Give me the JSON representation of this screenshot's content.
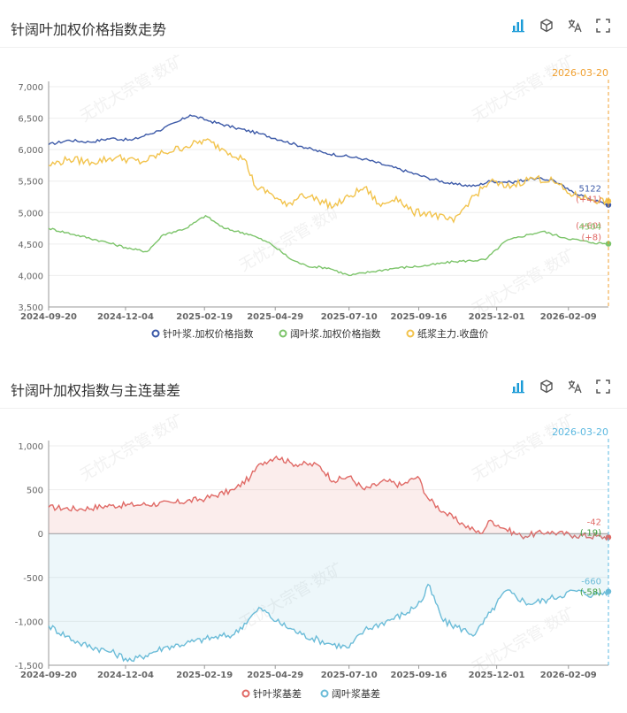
{
  "panel1": {
    "title": "针阔叶加权价格指数走势",
    "date_marker": "2026-03-20",
    "end_labels": {
      "nbsk": "5122",
      "nbsk_delta": "(+41)",
      "pulp_delta": "(+60)",
      "bhkp": "4504",
      "bhkp_delta": "(+8)"
    }
  },
  "panel2": {
    "title": "针阔叶加权指数与主连基差",
    "date_marker": "2026-03-20",
    "end_labels": {
      "nb": "-42",
      "nb_delta": "(-19)",
      "bh": "-660",
      "bh_delta": "(-58)"
    }
  },
  "watermark": "无忧大宗管·数矿",
  "colors": {
    "nbsk": "#3d5aa8",
    "bhkp": "#7cc46a",
    "pulp": "#f2c34c",
    "nb_basis": "#e06a66",
    "bh_basis": "#6bbcd8",
    "marker": "#f0a030",
    "marker2": "#5bb8e0"
  },
  "icons": [
    "bar-chart-icon",
    "cube-icon",
    "translate-icon",
    "fullscreen-icon"
  ],
  "chart_data": [
    {
      "type": "line",
      "title": "针阔叶加权价格指数走势",
      "x_ticks": [
        "2024-09-20",
        "2024-12-04",
        "2025-02-19",
        "2025-04-29",
        "2025-07-10",
        "2025-09-16",
        "2025-12-01",
        "2026-02-09"
      ],
      "x_range": [
        "2024-09-20",
        "2026-03-20"
      ],
      "ylim": [
        3500,
        7000
      ],
      "y_ticks": [
        "3,500",
        "4,000",
        "4,500",
        "5,000",
        "5,500",
        "6,000",
        "6,500",
        "7,000"
      ],
      "legend_position": "bottom",
      "series": [
        {
          "name": "针叶浆.加权价格指数",
          "color": "#3d5aa8",
          "points": [
            [
              "2024-09-20",
              6080
            ],
            [
              "2024-10-10",
              6150
            ],
            [
              "2024-10-30",
              6120
            ],
            [
              "2024-11-20",
              6180
            ],
            [
              "2024-12-10",
              6150
            ],
            [
              "2025-01-05",
              6300
            ],
            [
              "2025-01-25",
              6450
            ],
            [
              "2025-02-05",
              6550
            ],
            [
              "2025-02-25",
              6450
            ],
            [
              "2025-03-20",
              6350
            ],
            [
              "2025-04-15",
              6250
            ],
            [
              "2025-05-05",
              6150
            ],
            [
              "2025-05-25",
              6050
            ],
            [
              "2025-06-15",
              5950
            ],
            [
              "2025-07-05",
              5900
            ],
            [
              "2025-07-25",
              5850
            ],
            [
              "2025-08-15",
              5750
            ],
            [
              "2025-09-05",
              5650
            ],
            [
              "2025-09-25",
              5550
            ],
            [
              "2025-10-20",
              5450
            ],
            [
              "2025-11-10",
              5420
            ],
            [
              "2025-11-25",
              5500
            ],
            [
              "2025-12-15",
              5480
            ],
            [
              "2026-01-05",
              5540
            ],
            [
              "2026-01-25",
              5520
            ],
            [
              "2026-02-10",
              5350
            ],
            [
              "2026-03-05",
              5200
            ],
            [
              "2026-03-20",
              5122
            ]
          ]
        },
        {
          "name": "阔叶浆.加权价格指数",
          "color": "#7cc46a",
          "points": [
            [
              "2024-09-20",
              4750
            ],
            [
              "2024-10-15",
              4650
            ],
            [
              "2024-11-10",
              4550
            ],
            [
              "2024-12-10",
              4420
            ],
            [
              "2024-12-25",
              4380
            ],
            [
              "2025-01-10",
              4650
            ],
            [
              "2025-02-01",
              4750
            ],
            [
              "2025-02-20",
              4950
            ],
            [
              "2025-03-10",
              4750
            ],
            [
              "2025-04-05",
              4650
            ],
            [
              "2025-04-25",
              4500
            ],
            [
              "2025-05-15",
              4250
            ],
            [
              "2025-05-30",
              4150
            ],
            [
              "2025-06-20",
              4120
            ],
            [
              "2025-07-10",
              4000
            ],
            [
              "2025-08-01",
              4060
            ],
            [
              "2025-08-25",
              4120
            ],
            [
              "2025-09-20",
              4150
            ],
            [
              "2025-10-20",
              4220
            ],
            [
              "2025-11-20",
              4250
            ],
            [
              "2025-12-10",
              4550
            ],
            [
              "2026-01-01",
              4650
            ],
            [
              "2026-01-15",
              4700
            ],
            [
              "2026-02-05",
              4600
            ],
            [
              "2026-03-05",
              4520
            ],
            [
              "2026-03-20",
              4504
            ]
          ]
        },
        {
          "name": "纸浆主力.收盘价",
          "color": "#f2c34c",
          "points": [
            [
              "2024-09-20",
              5750
            ],
            [
              "2024-10-10",
              5850
            ],
            [
              "2024-11-01",
              5800
            ],
            [
              "2024-11-25",
              5880
            ],
            [
              "2024-12-20",
              5800
            ],
            [
              "2025-01-10",
              5950
            ],
            [
              "2025-02-01",
              6050
            ],
            [
              "2025-02-20",
              6150
            ],
            [
              "2025-03-10",
              6000
            ],
            [
              "2025-03-30",
              5850
            ],
            [
              "2025-04-10",
              5400
            ],
            [
              "2025-04-25",
              5300
            ],
            [
              "2025-05-10",
              5100
            ],
            [
              "2025-05-25",
              5300
            ],
            [
              "2025-06-10",
              5200
            ],
            [
              "2025-06-25",
              5100
            ],
            [
              "2025-07-10",
              5250
            ],
            [
              "2025-07-25",
              5400
            ],
            [
              "2025-08-10",
              5100
            ],
            [
              "2025-08-25",
              5250
            ],
            [
              "2025-09-10",
              5000
            ],
            [
              "2025-09-25",
              5000
            ],
            [
              "2025-10-20",
              4850
            ],
            [
              "2025-11-05",
              5200
            ],
            [
              "2025-11-25",
              5500
            ],
            [
              "2025-12-10",
              5400
            ],
            [
              "2026-01-05",
              5550
            ],
            [
              "2026-01-25",
              5500
            ],
            [
              "2026-02-10",
              5300
            ],
            [
              "2026-03-05",
              5200
            ],
            [
              "2026-03-20",
              5182
            ]
          ]
        }
      ]
    },
    {
      "type": "area",
      "title": "针阔叶加权指数与主连基差",
      "x_ticks": [
        "2024-09-20",
        "2024-12-04",
        "2025-02-19",
        "2025-04-29",
        "2025-07-10",
        "2025-09-16",
        "2025-12-01",
        "2026-02-09"
      ],
      "x_range": [
        "2024-09-20",
        "2026-03-20"
      ],
      "ylim": [
        -1500,
        1000
      ],
      "y_ticks": [
        "-1,500",
        "-1,000",
        "-500",
        "0",
        "500",
        "1,000"
      ],
      "legend_position": "bottom",
      "series": [
        {
          "name": "针叶浆基差",
          "color": "#e06a66",
          "points": [
            [
              "2024-09-20",
              300
            ],
            [
              "2024-10-20",
              280
            ],
            [
              "2024-11-20",
              320
            ],
            [
              "2024-12-20",
              330
            ],
            [
              "2025-01-20",
              350
            ],
            [
              "2025-02-20",
              400
            ],
            [
              "2025-03-20",
              500
            ],
            [
              "2025-04-05",
              650
            ],
            [
              "2025-04-15",
              800
            ],
            [
              "2025-04-30",
              880
            ],
            [
              "2025-05-15",
              800
            ],
            [
              "2025-06-10",
              780
            ],
            [
              "2025-06-25",
              600
            ],
            [
              "2025-07-10",
              650
            ],
            [
              "2025-07-25",
              500
            ],
            [
              "2025-08-15",
              600
            ],
            [
              "2025-08-30",
              550
            ],
            [
              "2025-09-15",
              650
            ],
            [
              "2025-09-25",
              400
            ],
            [
              "2025-10-10",
              250
            ],
            [
              "2025-10-30",
              100
            ],
            [
              "2025-11-15",
              0
            ],
            [
              "2025-11-25",
              150
            ],
            [
              "2025-12-10",
              50
            ],
            [
              "2025-12-25",
              -30
            ],
            [
              "2026-01-20",
              20
            ],
            [
              "2026-02-15",
              -20
            ],
            [
              "2026-03-20",
              -42
            ]
          ]
        },
        {
          "name": "阔叶浆基差",
          "color": "#6bbcd8",
          "points": [
            [
              "2024-09-20",
              -1050
            ],
            [
              "2024-10-20",
              -1250
            ],
            [
              "2024-11-20",
              -1350
            ],
            [
              "2024-12-10",
              -1450
            ],
            [
              "2025-01-10",
              -1300
            ],
            [
              "2025-02-01",
              -1250
            ],
            [
              "2025-02-20",
              -1200
            ],
            [
              "2025-03-20",
              -1150
            ],
            [
              "2025-04-05",
              -950
            ],
            [
              "2025-04-15",
              -850
            ],
            [
              "2025-04-30",
              -1000
            ],
            [
              "2025-05-25",
              -1150
            ],
            [
              "2025-06-20",
              -1250
            ],
            [
              "2025-07-10",
              -1300
            ],
            [
              "2025-07-25",
              -1100
            ],
            [
              "2025-08-15",
              -1000
            ],
            [
              "2025-09-05",
              -900
            ],
            [
              "2025-09-20",
              -750
            ],
            [
              "2025-09-25",
              -580
            ],
            [
              "2025-10-10",
              -1000
            ],
            [
              "2025-11-10",
              -1150
            ],
            [
              "2025-11-25",
              -900
            ],
            [
              "2025-12-10",
              -650
            ],
            [
              "2026-01-01",
              -800
            ],
            [
              "2026-01-20",
              -750
            ],
            [
              "2026-02-15",
              -650
            ],
            [
              "2026-03-05",
              -700
            ],
            [
              "2026-03-20",
              -660
            ]
          ]
        }
      ]
    }
  ]
}
